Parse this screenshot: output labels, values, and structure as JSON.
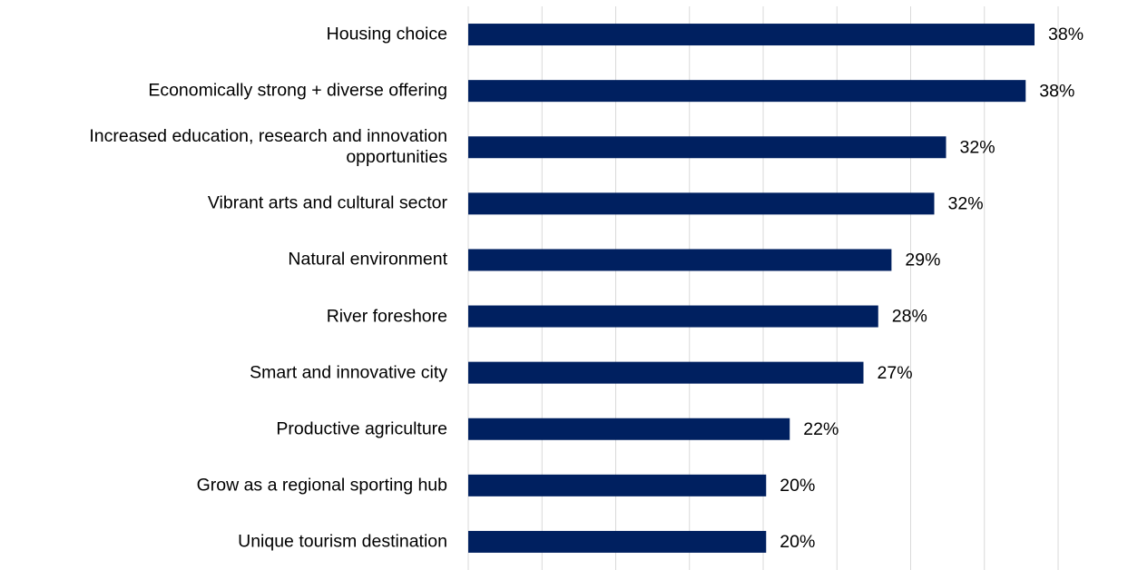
{
  "chart_data": {
    "type": "bar",
    "orientation": "horizontal",
    "categories": [
      "Housing choice",
      "Economically strong + diverse offering",
      "Increased education, research and innovation opportunities",
      "Vibrant arts and cultural sector",
      "Natural environment",
      "River foreshore",
      "Smart and innovative city",
      "Productive agriculture",
      "Grow as a regional sporting hub",
      "Unique tourism destination"
    ],
    "values": [
      38.4,
      37.8,
      32.4,
      31.6,
      28.7,
      27.8,
      26.8,
      21.8,
      20.2,
      20.2
    ],
    "value_labels": [
      "38%",
      "38%",
      "32%",
      "32%",
      "29%",
      "28%",
      "27%",
      "22%",
      "20%",
      "20%"
    ],
    "color": "#002060",
    "xlim": [
      0,
      40
    ],
    "xticks": [
      0,
      5,
      10,
      15,
      20,
      25,
      30,
      35,
      40
    ],
    "xtick_labels": false,
    "grid": true
  }
}
